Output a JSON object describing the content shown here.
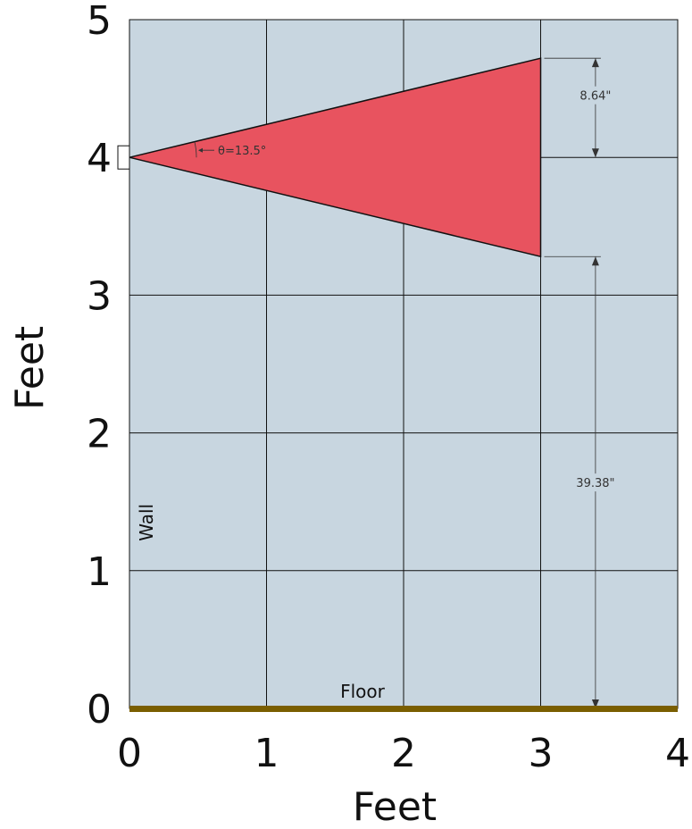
{
  "chart_data": {
    "type": "diagram",
    "xlabel": "Feet",
    "ylabel": "Feet",
    "xlim": [
      0,
      4
    ],
    "ylim": [
      0,
      5
    ],
    "x_ticks": [
      "0",
      "1",
      "2",
      "3",
      "4"
    ],
    "y_ticks": [
      "0",
      "1",
      "2",
      "3",
      "4",
      "5"
    ],
    "grid": true,
    "source": {
      "x": 0,
      "y": 4
    },
    "cone": {
      "apex": [
        0,
        4
      ],
      "end_x": 3,
      "top_y": 4.72,
      "bottom_y": 3.28,
      "color": "#e8535f"
    },
    "angle_label": "θ=13.5°",
    "dimension_top": {
      "label": "8.64\"",
      "x": 3.4,
      "from_y": 4.72,
      "to_y": 4.0
    },
    "dimension_bottom": {
      "label": "39.38\"",
      "x": 3.4,
      "from_y": 3.28,
      "to_y": 0
    },
    "wall_label": "Wall",
    "floor_label": "Floor",
    "colors": {
      "background": "#c8d6e0",
      "floor": "#7a5e00",
      "grid": "#111111"
    }
  }
}
